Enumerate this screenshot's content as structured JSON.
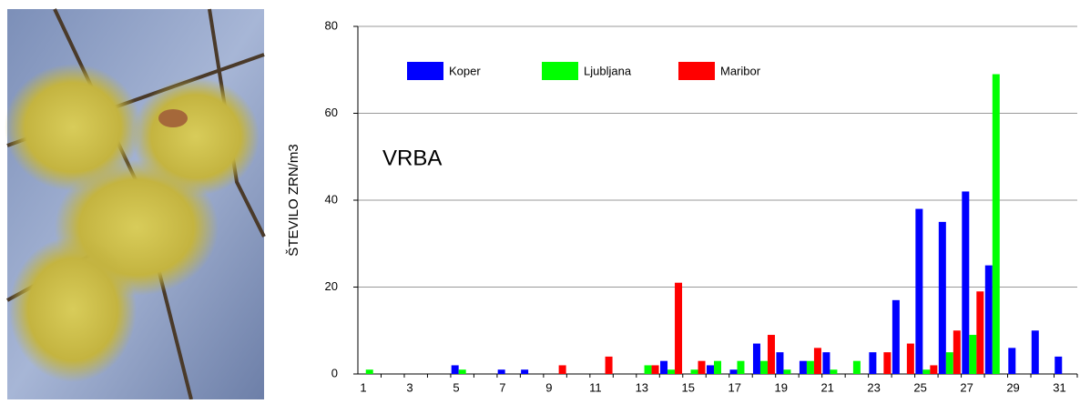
{
  "chart_data": {
    "type": "bar",
    "y_label": "ŠTEVILO ZRN/m3",
    "annotation": "VRBA",
    "categories": [
      "1",
      null,
      "3",
      null,
      "5",
      null,
      "7",
      null,
      "9",
      null,
      "11",
      null,
      "13",
      null,
      "15",
      null,
      "17",
      null,
      "19",
      null,
      "21",
      null,
      "23",
      null,
      "25",
      null,
      "27",
      null,
      "29",
      null,
      "31"
    ],
    "series": [
      {
        "name": "Koper",
        "color": "#0000ff",
        "values": [
          0,
          0,
          0,
          0,
          2,
          0,
          1,
          1,
          0,
          0,
          0,
          0,
          0,
          3,
          0,
          2,
          1,
          7,
          5,
          3,
          5,
          0,
          5,
          17,
          38,
          35,
          42,
          25,
          6,
          10,
          4
        ]
      },
      {
        "name": "Ljubljana",
        "color": "#00ff00",
        "values": [
          1,
          0,
          0,
          0,
          1,
          0,
          0,
          0,
          0,
          0,
          0,
          0,
          2,
          1,
          1,
          3,
          3,
          3,
          1,
          3,
          1,
          3,
          0,
          0,
          1,
          5,
          9,
          69,
          0,
          0,
          0
        ]
      },
      {
        "name": "Maribor",
        "color": "#ff0000",
        "values": [
          0,
          0,
          0,
          0,
          0,
          0,
          0,
          0,
          2,
          0,
          4,
          0,
          2,
          21,
          3,
          0,
          0,
          9,
          0,
          6,
          0,
          0,
          5,
          7,
          2,
          10,
          19,
          0,
          0,
          0,
          0
        ]
      }
    ],
    "ylim": [
      0,
      80
    ],
    "yticks": [
      0,
      20,
      40,
      60,
      80
    ],
    "grid": true
  }
}
